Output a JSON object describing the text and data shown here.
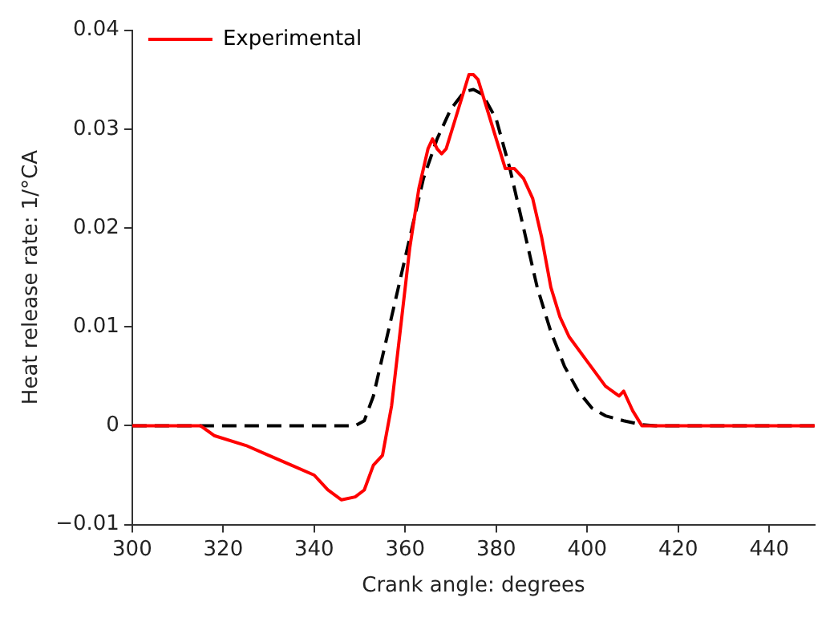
{
  "chart_data": {
    "type": "line",
    "xlabel": "Crank angle: degrees",
    "ylabel": "Heat release rate: 1/°CA",
    "xlim": [
      300,
      450
    ],
    "xticks": [
      300,
      320,
      340,
      360,
      380,
      400,
      420,
      440
    ],
    "ylim": [
      -0.01,
      0.04
    ],
    "yticks": [
      -0.01,
      0,
      0.01,
      0.02,
      0.03,
      0.04
    ],
    "grid": false,
    "legend": "top left",
    "marker": "none",
    "series": [
      {
        "name": "Experimental",
        "color": "#ff0000",
        "line_style": "solid",
        "x": [
          300,
          315,
          318,
          325,
          330,
          335,
          340,
          343,
          346,
          349,
          351,
          353,
          355,
          357,
          359,
          361,
          363,
          365,
          366,
          367,
          368,
          369,
          371,
          373,
          374,
          375,
          376,
          378,
          380,
          382,
          384,
          386,
          388,
          390,
          392,
          394,
          396,
          400,
          404,
          407,
          408,
          410,
          412,
          450
        ],
        "values": [
          0,
          0,
          -0.001,
          -0.002,
          -0.003,
          -0.004,
          -0.005,
          -0.0065,
          -0.0075,
          -0.0072,
          -0.0065,
          -0.004,
          -0.003,
          0.002,
          0.01,
          0.018,
          0.024,
          0.028,
          0.029,
          0.028,
          0.0275,
          0.028,
          0.031,
          0.034,
          0.0355,
          0.0355,
          0.035,
          0.032,
          0.029,
          0.026,
          0.026,
          0.025,
          0.023,
          0.019,
          0.014,
          0.011,
          0.009,
          0.0065,
          0.004,
          0.003,
          0.0035,
          0.0015,
          0,
          0
        ]
      },
      {
        "color": "#000000",
        "line_style": "dashed",
        "x": [
          300,
          349,
          351,
          353,
          355,
          358,
          361,
          364,
          367,
          370,
          373,
          375,
          377,
          380,
          383,
          386,
          389,
          392,
          395,
          398,
          401,
          404,
          408,
          412,
          415,
          450
        ],
        "values": [
          0,
          0,
          0.0005,
          0.003,
          0.007,
          0.013,
          0.019,
          0.025,
          0.029,
          0.032,
          0.0338,
          0.034,
          0.0335,
          0.031,
          0.026,
          0.02,
          0.014,
          0.0095,
          0.006,
          0.0035,
          0.0018,
          0.001,
          0.0005,
          0.0001,
          0,
          0
        ]
      }
    ]
  }
}
